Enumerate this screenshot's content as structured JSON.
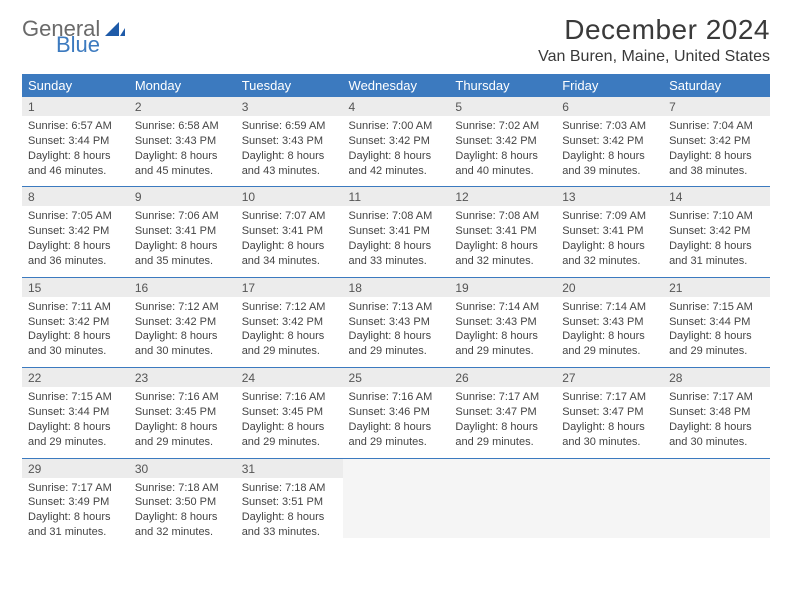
{
  "logo": {
    "word1": "General",
    "word2": "Blue"
  },
  "title": "December 2024",
  "location": "Van Buren, Maine, United States",
  "colors": {
    "accent": "#3c7abf",
    "header_text": "#ffffff",
    "daynum_bg": "#ececec",
    "rule": "#3c7abf"
  },
  "weekdays": [
    "Sunday",
    "Monday",
    "Tuesday",
    "Wednesday",
    "Thursday",
    "Friday",
    "Saturday"
  ],
  "weeks": [
    [
      {
        "n": "1",
        "sr": "Sunrise: 6:57 AM",
        "ss": "Sunset: 3:44 PM",
        "dl": "Daylight: 8 hours and 46 minutes."
      },
      {
        "n": "2",
        "sr": "Sunrise: 6:58 AM",
        "ss": "Sunset: 3:43 PM",
        "dl": "Daylight: 8 hours and 45 minutes."
      },
      {
        "n": "3",
        "sr": "Sunrise: 6:59 AM",
        "ss": "Sunset: 3:43 PM",
        "dl": "Daylight: 8 hours and 43 minutes."
      },
      {
        "n": "4",
        "sr": "Sunrise: 7:00 AM",
        "ss": "Sunset: 3:42 PM",
        "dl": "Daylight: 8 hours and 42 minutes."
      },
      {
        "n": "5",
        "sr": "Sunrise: 7:02 AM",
        "ss": "Sunset: 3:42 PM",
        "dl": "Daylight: 8 hours and 40 minutes."
      },
      {
        "n": "6",
        "sr": "Sunrise: 7:03 AM",
        "ss": "Sunset: 3:42 PM",
        "dl": "Daylight: 8 hours and 39 minutes."
      },
      {
        "n": "7",
        "sr": "Sunrise: 7:04 AM",
        "ss": "Sunset: 3:42 PM",
        "dl": "Daylight: 8 hours and 38 minutes."
      }
    ],
    [
      {
        "n": "8",
        "sr": "Sunrise: 7:05 AM",
        "ss": "Sunset: 3:42 PM",
        "dl": "Daylight: 8 hours and 36 minutes."
      },
      {
        "n": "9",
        "sr": "Sunrise: 7:06 AM",
        "ss": "Sunset: 3:41 PM",
        "dl": "Daylight: 8 hours and 35 minutes."
      },
      {
        "n": "10",
        "sr": "Sunrise: 7:07 AM",
        "ss": "Sunset: 3:41 PM",
        "dl": "Daylight: 8 hours and 34 minutes."
      },
      {
        "n": "11",
        "sr": "Sunrise: 7:08 AM",
        "ss": "Sunset: 3:41 PM",
        "dl": "Daylight: 8 hours and 33 minutes."
      },
      {
        "n": "12",
        "sr": "Sunrise: 7:08 AM",
        "ss": "Sunset: 3:41 PM",
        "dl": "Daylight: 8 hours and 32 minutes."
      },
      {
        "n": "13",
        "sr": "Sunrise: 7:09 AM",
        "ss": "Sunset: 3:41 PM",
        "dl": "Daylight: 8 hours and 32 minutes."
      },
      {
        "n": "14",
        "sr": "Sunrise: 7:10 AM",
        "ss": "Sunset: 3:42 PM",
        "dl": "Daylight: 8 hours and 31 minutes."
      }
    ],
    [
      {
        "n": "15",
        "sr": "Sunrise: 7:11 AM",
        "ss": "Sunset: 3:42 PM",
        "dl": "Daylight: 8 hours and 30 minutes."
      },
      {
        "n": "16",
        "sr": "Sunrise: 7:12 AM",
        "ss": "Sunset: 3:42 PM",
        "dl": "Daylight: 8 hours and 30 minutes."
      },
      {
        "n": "17",
        "sr": "Sunrise: 7:12 AM",
        "ss": "Sunset: 3:42 PM",
        "dl": "Daylight: 8 hours and 29 minutes."
      },
      {
        "n": "18",
        "sr": "Sunrise: 7:13 AM",
        "ss": "Sunset: 3:43 PM",
        "dl": "Daylight: 8 hours and 29 minutes."
      },
      {
        "n": "19",
        "sr": "Sunrise: 7:14 AM",
        "ss": "Sunset: 3:43 PM",
        "dl": "Daylight: 8 hours and 29 minutes."
      },
      {
        "n": "20",
        "sr": "Sunrise: 7:14 AM",
        "ss": "Sunset: 3:43 PM",
        "dl": "Daylight: 8 hours and 29 minutes."
      },
      {
        "n": "21",
        "sr": "Sunrise: 7:15 AM",
        "ss": "Sunset: 3:44 PM",
        "dl": "Daylight: 8 hours and 29 minutes."
      }
    ],
    [
      {
        "n": "22",
        "sr": "Sunrise: 7:15 AM",
        "ss": "Sunset: 3:44 PM",
        "dl": "Daylight: 8 hours and 29 minutes."
      },
      {
        "n": "23",
        "sr": "Sunrise: 7:16 AM",
        "ss": "Sunset: 3:45 PM",
        "dl": "Daylight: 8 hours and 29 minutes."
      },
      {
        "n": "24",
        "sr": "Sunrise: 7:16 AM",
        "ss": "Sunset: 3:45 PM",
        "dl": "Daylight: 8 hours and 29 minutes."
      },
      {
        "n": "25",
        "sr": "Sunrise: 7:16 AM",
        "ss": "Sunset: 3:46 PM",
        "dl": "Daylight: 8 hours and 29 minutes."
      },
      {
        "n": "26",
        "sr": "Sunrise: 7:17 AM",
        "ss": "Sunset: 3:47 PM",
        "dl": "Daylight: 8 hours and 29 minutes."
      },
      {
        "n": "27",
        "sr": "Sunrise: 7:17 AM",
        "ss": "Sunset: 3:47 PM",
        "dl": "Daylight: 8 hours and 30 minutes."
      },
      {
        "n": "28",
        "sr": "Sunrise: 7:17 AM",
        "ss": "Sunset: 3:48 PM",
        "dl": "Daylight: 8 hours and 30 minutes."
      }
    ],
    [
      {
        "n": "29",
        "sr": "Sunrise: 7:17 AM",
        "ss": "Sunset: 3:49 PM",
        "dl": "Daylight: 8 hours and 31 minutes."
      },
      {
        "n": "30",
        "sr": "Sunrise: 7:18 AM",
        "ss": "Sunset: 3:50 PM",
        "dl": "Daylight: 8 hours and 32 minutes."
      },
      {
        "n": "31",
        "sr": "Sunrise: 7:18 AM",
        "ss": "Sunset: 3:51 PM",
        "dl": "Daylight: 8 hours and 33 minutes."
      },
      null,
      null,
      null,
      null
    ]
  ]
}
